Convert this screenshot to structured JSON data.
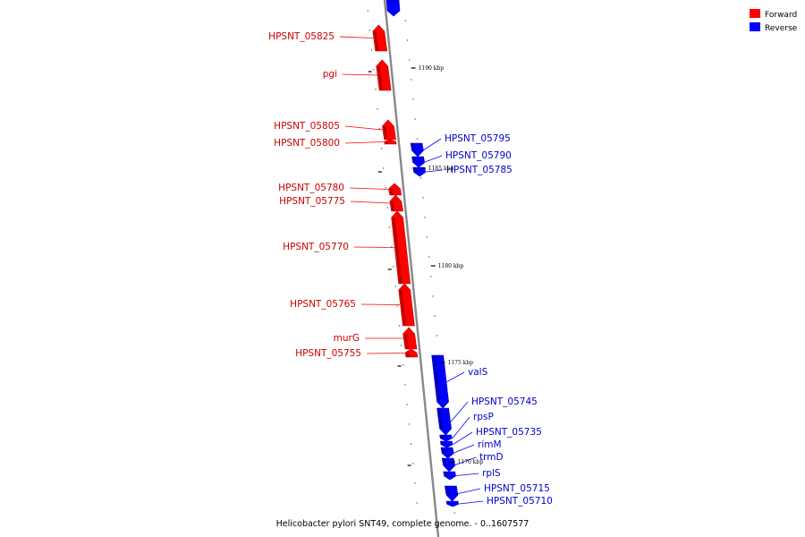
{
  "caption": "Helicobacter pylori SNT49, complete genome. - 0..1607577",
  "legend": {
    "forward_label": "Forward",
    "reverse_label": "Reverse"
  },
  "colors": {
    "forward": "#ff0000",
    "reverse": "#0000ff",
    "backbone": "#888888"
  },
  "scale": {
    "unit": "kbp",
    "ticks": [
      {
        "kbp": 1190,
        "label": "1190 kbp"
      },
      {
        "kbp": 1185,
        "label": "1185 kbp"
      },
      {
        "kbp": 1180,
        "label": "1180 kbp"
      },
      {
        "kbp": 1175,
        "label": "1175 kbp"
      },
      {
        "kbp": 1170,
        "label": "1170 kbp"
      }
    ]
  },
  "genes_forward": [
    {
      "name": "HPSNT_05825"
    },
    {
      "name": "pgi"
    },
    {
      "name": "HPSNT_05805"
    },
    {
      "name": "HPSNT_05800"
    },
    {
      "name": "HPSNT_05780"
    },
    {
      "name": "HPSNT_05775"
    },
    {
      "name": "HPSNT_05770"
    },
    {
      "name": "HPSNT_05765"
    },
    {
      "name": "murG"
    },
    {
      "name": "HPSNT_05755"
    }
  ],
  "genes_reverse": [
    {
      "name": "HPSNT_05795"
    },
    {
      "name": "HPSNT_05790"
    },
    {
      "name": "HPSNT_05785"
    },
    {
      "name": "valS"
    },
    {
      "name": "HPSNT_05745"
    },
    {
      "name": "rpsP"
    },
    {
      "name": "HPSNT_05735"
    },
    {
      "name": "rimM"
    },
    {
      "name": "trmD"
    },
    {
      "name": "rplS"
    },
    {
      "name": "HPSNT_05715"
    },
    {
      "name": "HPSNT_05710"
    }
  ]
}
